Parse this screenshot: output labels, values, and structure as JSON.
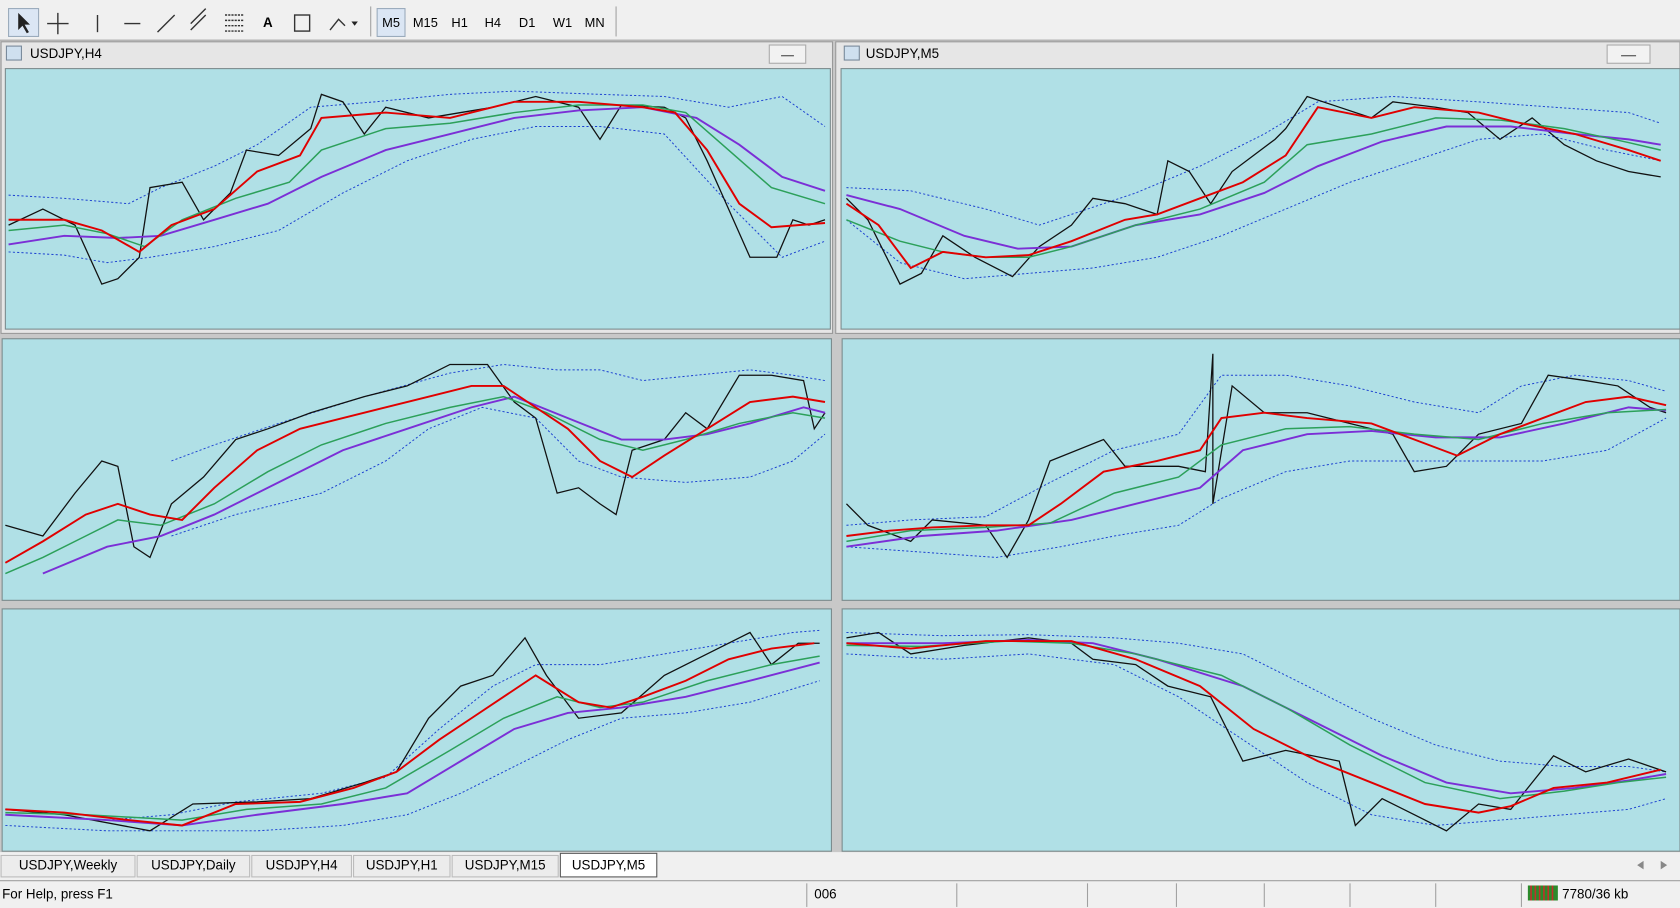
{
  "toolbar": {
    "timeframes": [
      "M5",
      "M15",
      "H1",
      "H4",
      "D1",
      "W1",
      "MN"
    ]
  },
  "windows": [
    {
      "title": "USDJPY,H4"
    },
    {
      "title": "USDJPY,M5"
    }
  ],
  "tabs": [
    "USDJPY,Weekly",
    "USDJPY,Daily",
    "USDJPY,H4",
    "USDJPY,H1",
    "USDJPY,M15",
    "USDJPY,M5"
  ],
  "status": {
    "help": "For Help, press F1",
    "field": "006",
    "traffic": "7780/36 kb"
  }
}
